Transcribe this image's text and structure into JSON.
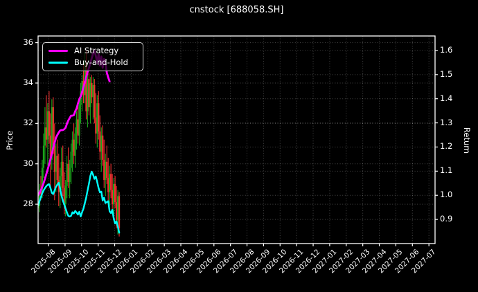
{
  "chart_data": {
    "type": "candlestick+line",
    "title": "cnstock [688058.SH]",
    "symbol": "688058.SH",
    "grid": "dotted, both axes",
    "legend_position": "upper left",
    "axes": {
      "x": {
        "tick_labels": [
          "2025-08",
          "2025-09",
          "2025-10",
          "2025-11",
          "2025-12",
          "2026-01",
          "2026-02",
          "2026-03",
          "2026-04",
          "2026-05",
          "2026-06",
          "2026-07",
          "2026-08",
          "2026-09",
          "2026-10",
          "2026-11",
          "2026-12",
          "2027-01",
          "2027-02",
          "2027-03",
          "2027-04",
          "2027-05",
          "2027-06",
          "2027-07"
        ],
        "min": -0.63,
        "max": 23.37
      },
      "price": {
        "label": "Price",
        "side": "left",
        "tick_values": [
          28,
          30,
          32,
          34,
          36
        ],
        "tick_labels": [
          "28",
          "30",
          "32",
          "34",
          "36"
        ],
        "min": 26.05,
        "max": 36.33
      },
      "return": {
        "label": "Return",
        "side": "right",
        "tick_values": [
          0.9,
          1.0,
          1.1,
          1.2,
          1.3,
          1.4,
          1.5,
          1.6
        ],
        "tick_labels": [
          "0.9",
          "1.0",
          "1.1",
          "1.2",
          "1.3",
          "1.4",
          "1.5",
          "1.6"
        ],
        "min": 0.8,
        "max": 1.66
      }
    },
    "x_start_month_offset": -0.63,
    "x_month_pitch": 0.0831,
    "series": [
      {
        "name": "AI Strategy",
        "axis": "return",
        "color": "#ff00ff",
        "values": [
          1.0,
          1.01,
          1.022,
          1.035,
          1.05,
          1.068,
          1.088,
          1.108,
          1.128,
          1.15,
          1.17,
          1.197,
          1.218,
          1.238,
          1.25,
          1.26,
          1.268,
          1.27,
          1.27,
          1.274,
          1.28,
          1.297,
          1.31,
          1.32,
          1.33,
          1.33,
          1.332,
          1.348,
          1.36,
          1.38,
          1.398,
          1.41,
          1.428,
          1.448,
          1.468,
          1.49,
          1.51,
          1.528,
          1.548,
          1.568,
          1.588,
          1.6,
          1.578,
          1.548,
          1.585,
          1.538,
          1.575,
          1.528,
          1.565,
          1.548,
          1.508,
          1.488,
          1.472
        ]
      },
      {
        "name": "Buy-and-Hold",
        "axis": "return",
        "color": "#00ffff",
        "values": [
          0.958,
          0.975,
          0.992,
          1.008,
          1.02,
          1.03,
          1.038,
          1.044,
          1.046,
          1.03,
          1.01,
          1.005,
          1.02,
          1.035,
          1.044,
          1.052,
          1.03,
          1.0,
          0.978,
          0.962,
          0.945,
          0.928,
          0.915,
          0.912,
          0.915,
          0.93,
          0.925,
          0.935,
          0.928,
          0.92,
          0.932,
          0.912,
          0.93,
          0.945,
          0.968,
          0.99,
          1.02,
          1.048,
          1.08,
          1.098,
          1.085,
          1.068,
          1.078,
          1.055,
          1.03,
          1.012,
          1.015,
          0.978,
          0.99,
          0.968,
          0.972,
          0.976,
          0.934,
          0.926,
          0.94,
          0.905,
          0.883,
          0.892,
          0.87,
          0.845
        ]
      }
    ],
    "candles": {
      "axis": "price",
      "up_color": "#1aa31a",
      "down_color": "#f03030",
      "ohlc": [
        [
          27.8,
          28.3,
          27.4,
          27.9
        ],
        [
          27.9,
          29.0,
          27.6,
          28.7
        ],
        [
          28.7,
          29.4,
          28.2,
          28.5
        ],
        [
          28.5,
          30.2,
          28.3,
          29.8
        ],
        [
          29.8,
          31.5,
          29.3,
          30.9
        ],
        [
          30.9,
          32.8,
          30.0,
          31.8
        ],
        [
          31.8,
          33.4,
          30.8,
          31.2
        ],
        [
          31.2,
          33.0,
          29.9,
          32.6
        ],
        [
          32.6,
          33.6,
          31.0,
          31.4
        ],
        [
          31.4,
          32.5,
          28.8,
          30.2
        ],
        [
          30.2,
          33.2,
          29.7,
          32.8
        ],
        [
          32.8,
          33.3,
          30.5,
          30.9
        ],
        [
          30.9,
          32.0,
          28.2,
          29.6
        ],
        [
          29.6,
          31.0,
          28.6,
          30.4
        ],
        [
          30.4,
          31.2,
          28.9,
          29.2
        ],
        [
          29.2,
          30.5,
          27.9,
          28.6
        ],
        [
          28.6,
          29.8,
          27.8,
          29.4
        ],
        [
          29.4,
          30.8,
          28.7,
          30.1
        ],
        [
          30.1,
          30.9,
          28.4,
          28.8
        ],
        [
          28.8,
          29.6,
          27.5,
          28.0
        ],
        [
          28.0,
          29.2,
          27.4,
          28.9
        ],
        [
          28.9,
          30.4,
          28.3,
          30.0
        ],
        [
          30.0,
          30.8,
          28.8,
          29.1
        ],
        [
          29.1,
          30.2,
          28.3,
          29.8
        ],
        [
          29.8,
          31.0,
          29.0,
          30.6
        ],
        [
          30.6,
          31.6,
          29.6,
          31.2
        ],
        [
          31.2,
          32.0,
          30.0,
          30.4
        ],
        [
          30.4,
          31.8,
          29.8,
          31.5
        ],
        [
          31.5,
          32.6,
          30.7,
          32.2
        ],
        [
          32.2,
          33.0,
          31.0,
          31.4
        ],
        [
          31.4,
          33.2,
          30.9,
          32.9
        ],
        [
          32.9,
          34.0,
          32.0,
          33.6
        ],
        [
          33.6,
          34.4,
          32.6,
          34.1
        ],
        [
          34.1,
          35.0,
          33.0,
          33.4
        ],
        [
          33.4,
          35.5,
          33.0,
          35.0
        ],
        [
          35.0,
          35.6,
          32.2,
          32.6
        ],
        [
          32.6,
          34.6,
          31.8,
          34.2
        ],
        [
          34.2,
          34.5,
          32.4,
          32.8
        ],
        [
          32.8,
          34.3,
          32.0,
          34.0
        ],
        [
          34.0,
          34.4,
          33.0,
          33.3
        ],
        [
          33.3,
          34.3,
          32.2,
          33.9
        ],
        [
          33.9,
          34.2,
          32.0,
          32.3
        ],
        [
          32.3,
          33.5,
          31.0,
          31.5
        ],
        [
          31.5,
          33.4,
          30.8,
          33.0
        ],
        [
          33.0,
          33.6,
          31.2,
          31.6
        ],
        [
          31.6,
          32.4,
          30.2,
          30.6
        ],
        [
          30.6,
          31.8,
          29.6,
          31.4
        ],
        [
          31.4,
          31.9,
          29.9,
          30.2
        ],
        [
          30.2,
          31.2,
          28.8,
          29.2
        ],
        [
          29.2,
          30.5,
          28.4,
          30.1
        ],
        [
          30.1,
          30.9,
          29.0,
          29.3
        ],
        [
          29.3,
          30.3,
          28.2,
          28.6
        ],
        [
          28.6,
          29.9,
          27.9,
          29.5
        ],
        [
          29.5,
          30.0,
          28.3,
          28.7
        ],
        [
          28.7,
          29.5,
          27.6,
          28.0
        ],
        [
          28.0,
          29.3,
          27.4,
          29.0
        ],
        [
          29.0,
          29.4,
          27.8,
          28.1
        ],
        [
          28.1,
          28.9,
          26.8,
          27.2
        ],
        [
          27.2,
          28.7,
          26.5,
          28.4
        ],
        [
          28.4,
          28.6,
          26.4,
          26.8
        ]
      ]
    },
    "colors": {
      "background": "#000000",
      "spine": "#ffffff",
      "grid": "rgba(255,255,255,0.28)",
      "text": "#ffffff"
    }
  }
}
